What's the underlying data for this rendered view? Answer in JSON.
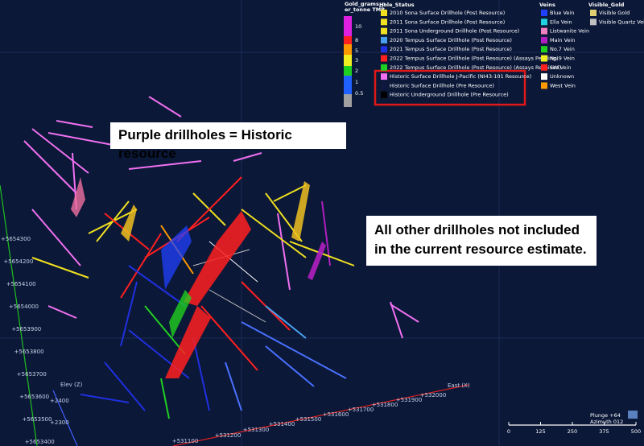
{
  "grade_legend": {
    "title": [
      "Gold_grams_p",
      "er_tonne TMR"
    ],
    "items": [
      {
        "label": "10",
        "color": "#e020e0"
      },
      {
        "label": "8",
        "color": "#ff2020"
      },
      {
        "label": "5",
        "color": "#ff9900"
      },
      {
        "label": "3",
        "color": "#f0f020"
      },
      {
        "label": "2",
        "color": "#20d020"
      },
      {
        "label": "1",
        "color": "#2060ff"
      },
      {
        "label": "0.5",
        "color": "#a0a0a0"
      }
    ]
  },
  "hole_status": {
    "title": "Hole_Status",
    "items": [
      {
        "label": "2010 Sona Surface Drillhole (Post Resource)",
        "color": "#f0e020"
      },
      {
        "label": "2011 Sona Surface Drillhole (Post Resource)",
        "color": "#f0e020"
      },
      {
        "label": "2011 Sona Underground Drillhole (Post Resource)",
        "color": "#f0e020"
      },
      {
        "label": "2020 Tempus Surface Drillhole (Post Resource)",
        "color": "#4aa0f0"
      },
      {
        "label": "2021 Tempus Surface Drillhole (Post Resource)",
        "color": "#2030e0"
      },
      {
        "label": "2022 Tempus Surface Drillhole (Post Resource) (Assays Pending)",
        "color": "#ff2020"
      },
      {
        "label": "2022 Tempus Surface Drillhole (Post Resource) (Assays Received)",
        "color": "#20d020"
      },
      {
        "label": "Historic Surface Drillhole  J-Pacific (NI43-101 Resource)",
        "color": "#f070f0"
      },
      {
        "label": "Historic Surface Drillhole (Pre Resource)",
        "color": "#101840"
      },
      {
        "label": "Historic Underground Drillhole (Pre Resource)",
        "color": "#000000"
      }
    ]
  },
  "veins": {
    "title": "Veins",
    "items": [
      {
        "label": "Blue Vein",
        "color": "#2040ff"
      },
      {
        "label": "Ella Vein",
        "color": "#20d0e0"
      },
      {
        "label": "Listwanite Vein",
        "color": "#f080c0"
      },
      {
        "label": "Main Vein",
        "color": "#b020c0"
      },
      {
        "label": "No.7 Vein",
        "color": "#20d020"
      },
      {
        "label": "No.9 Vein",
        "color": "#f0f020"
      },
      {
        "label": "SW Vein",
        "color": "#ff2020"
      },
      {
        "label": "Unknown",
        "color": "#ffffff"
      },
      {
        "label": "West Vein",
        "color": "#ff9900"
      }
    ]
  },
  "visible_gold": {
    "title": "Visible_Gold",
    "items": [
      {
        "label": "Visible Gold",
        "color": "#e0d070"
      },
      {
        "label": "Visible Quartz Vein",
        "color": "#c0c0c0"
      }
    ]
  },
  "callouts": [
    "Purple drillholes = Historic resource",
    "All other drillholes not included in the current resource estimate."
  ],
  "axes": {
    "northing": {
      "labels": [
        "+5654300",
        "+5654200",
        "+5654100",
        "+5654000",
        "+5653900",
        "+5653800",
        "+5653700",
        "+5653600",
        "+5653500",
        "+5653400"
      ]
    },
    "elevation": {
      "title": "Elev (Z)",
      "labels": [
        "+2400",
        "+2300"
      ]
    },
    "easting": {
      "title": "East (X)",
      "labels": [
        "+531100",
        "+531200",
        "+531300",
        "+531400",
        "+531500",
        "+531600",
        "+531700",
        "+531800",
        "+531900",
        "+532000"
      ]
    }
  },
  "scale_bar": {
    "labels": [
      0,
      125,
      250,
      375,
      500
    ]
  },
  "view": {
    "plunge": "Plunge +64",
    "azimuth": "Azimuth 012"
  }
}
